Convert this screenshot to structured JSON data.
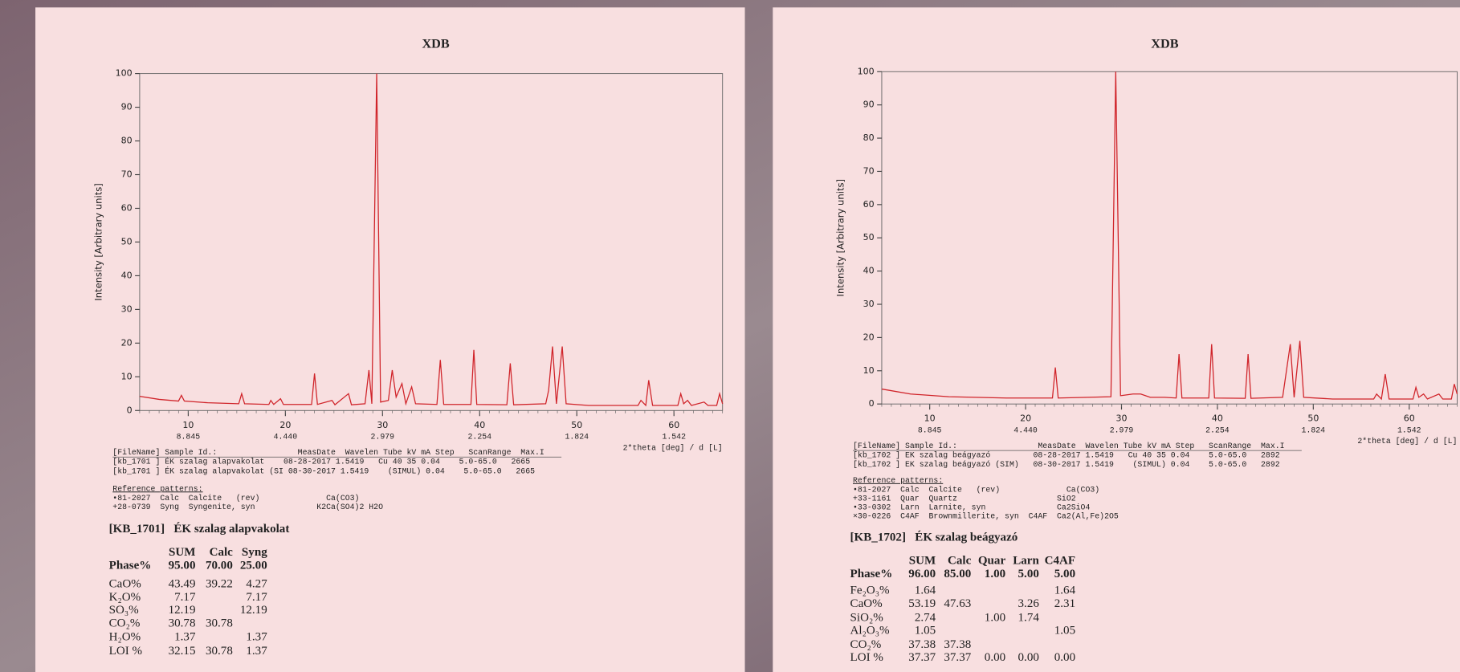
{
  "chart_data": [
    {
      "type": "line",
      "title": "XDB",
      "y_label": "Intensity  [Arbitrary units]",
      "x_label": "2*theta [deg] / d [L]",
      "xlim": [
        5,
        65
      ],
      "xticks": [
        10,
        20,
        30,
        40,
        50,
        60
      ],
      "x2ticks": [
        {
          "value": 10,
          "label": "8.845"
        },
        {
          "value": 20,
          "label": "4.440"
        },
        {
          "value": 30,
          "label": "2.979"
        },
        {
          "value": 40,
          "label": "2.254"
        },
        {
          "value": 50,
          "label": "1.824"
        },
        {
          "value": 60,
          "label": "1.542"
        }
      ],
      "ylim": [
        0,
        100
      ],
      "yticks": [
        0,
        10,
        20,
        30,
        40,
        50,
        60,
        70,
        80,
        90,
        100
      ],
      "x": [
        5,
        7,
        9.0,
        9.3,
        9.6,
        12,
        15.2,
        15.5,
        15.8,
        18.3,
        18.5,
        18.8,
        19.5,
        19.8,
        22.7,
        23.0,
        23.3,
        24.8,
        25.1,
        26.5,
        26.8,
        28.2,
        28.6,
        28.9,
        29.4,
        29.8,
        30.6,
        31.0,
        31.4,
        32.0,
        32.4,
        33.0,
        33.4,
        35.6,
        35.95,
        36.3,
        39.1,
        39.4,
        39.7,
        42.8,
        43.15,
        43.5,
        46.8,
        47.1,
        47.5,
        47.9,
        48.5,
        48.9,
        51.2,
        56.3,
        56.6,
        57.1,
        57.4,
        57.8,
        60.4,
        60.7,
        61.0,
        61.4,
        61.8,
        63.1,
        63.5,
        64.4,
        64.7,
        65
      ],
      "series": [
        {
          "color": "#d0242a",
          "values": [
            4.2,
            3.3,
            2.8,
            4.5,
            2.8,
            2.3,
            2,
            5,
            2,
            1.8,
            3,
            1.8,
            3.5,
            1.8,
            1.8,
            11,
            1.8,
            3,
            1.7,
            5,
            1.7,
            2,
            12,
            2,
            100,
            2.5,
            3,
            12,
            4,
            8,
            2,
            7,
            2,
            1.8,
            15,
            1.8,
            1.8,
            18,
            1.8,
            1.7,
            14,
            1.7,
            2,
            6,
            19,
            2,
            19,
            2,
            1.5,
            1.5,
            3,
            1.5,
            9,
            1.5,
            1.5,
            5,
            2,
            3,
            1.5,
            2.5,
            1.5,
            1.5,
            5,
            2
          ]
        }
      ],
      "file_header": "[FileName] Sample Id.:                 MeasDate  Wavelen Tube kV mA Step   ScanRange  Max.I",
      "files": [
        {
          "text": "[kb_1701 ] ÉK szalag alapvakolat    08-28-2017 1.5419   Cu 40 35 0.04    5.0-65.0   2665",
          "color": "#c0303a"
        },
        {
          "text": "[kb_1701 ] ÉK szalag alapvakolat (SI 08-30-2017 1.5419    (SIMUL) 0.04    5.0-65.0   2665",
          "color": "#4040a0"
        }
      ],
      "reference_title": "Reference patterns:",
      "references": [
        {
          "text": "•81-2027  Calc  Calcite   (rev)              Ca(CO3)",
          "color": "#8a3a8a"
        },
        {
          "text": "+28-0739  Syng  Syngenite, syn             K2Ca(SO4)2 H2O",
          "color": "#8a3a8a"
        }
      ],
      "sample_title": "[KB_1701]   ÉK szalag alapvakolat",
      "table": {
        "header": [
          "SUM",
          "Calc",
          "Syng"
        ],
        "rows": [
          {
            "label": "Phase%",
            "cells": [
              "95.00",
              "70.00",
              "25.00"
            ]
          },
          {
            "label": "CaO%",
            "cells": [
              "43.49",
              "39.22",
              "4.27"
            ]
          },
          {
            "label": "K₂O%",
            "cells": [
              "7.17",
              null,
              "7.17"
            ]
          },
          {
            "label": "SO₃%",
            "cells": [
              "12.19",
              null,
              "12.19"
            ]
          },
          {
            "label": "CO₂%",
            "cells": [
              "30.78",
              "30.78",
              null
            ]
          },
          {
            "label": "H₂O%",
            "cells": [
              "1.37",
              null,
              "1.37"
            ]
          },
          {
            "label": "LOI %",
            "cells": [
              "32.15",
              "30.78",
              "1.37"
            ]
          }
        ]
      }
    },
    {
      "type": "line",
      "title": "XDB",
      "y_label": "Intensity  [Arbitrary units]",
      "x_label": "2*theta [deg] / d [L]",
      "xlim": [
        5,
        65
      ],
      "xticks": [
        10,
        20,
        30,
        40,
        50,
        60
      ],
      "x2ticks": [
        {
          "value": 10,
          "label": "8.845"
        },
        {
          "value": 20,
          "label": "4.440"
        },
        {
          "value": 30,
          "label": "2.979"
        },
        {
          "value": 40,
          "label": "2.254"
        },
        {
          "value": 50,
          "label": "1.824"
        },
        {
          "value": 60,
          "label": "1.542"
        }
      ],
      "ylim": [
        0,
        100
      ],
      "yticks": [
        0,
        10,
        20,
        30,
        40,
        50,
        60,
        70,
        80,
        90,
        100
      ],
      "x": [
        5,
        8,
        12,
        18,
        22.8,
        23.1,
        23.4,
        26.5,
        28.9,
        29.4,
        29.9,
        31.2,
        32.0,
        33.0,
        34.5,
        35.7,
        36.0,
        36.3,
        39.1,
        39.4,
        39.7,
        42.9,
        43.2,
        43.5,
        46.8,
        47.1,
        47.6,
        48.0,
        48.6,
        49.0,
        52,
        56.3,
        56.6,
        57.1,
        57.5,
        57.9,
        60.4,
        60.7,
        61.0,
        61.5,
        61.9,
        63.1,
        63.5,
        64.4,
        64.7,
        65
      ],
      "series": [
        {
          "color": "#d0242a",
          "values": [
            4.5,
            3,
            2.2,
            1.8,
            1.8,
            11,
            1.8,
            2,
            2.2,
            100,
            2.5,
            3,
            3,
            2,
            2,
            1.8,
            15,
            1.8,
            1.8,
            18,
            1.8,
            1.7,
            15,
            1.7,
            2,
            8,
            18,
            2,
            19,
            2,
            1.5,
            1.5,
            3,
            1.5,
            9,
            1.5,
            1.5,
            5,
            2,
            3,
            1.5,
            3,
            1.5,
            1.5,
            6,
            3
          ]
        }
      ],
      "file_header": "[FileName] Sample Id.:                 MeasDate  Wavelen Tube kV mA Step   ScanRange  Max.I",
      "files": [
        {
          "text": "[kb_1702 ] EK szalag beágyazó         08-28-2017 1.5419   Cu 40 35 0.04    5.0-65.0   2892",
          "color": "#c0303a"
        },
        {
          "text": "[kb_1702 ] EK szalag beágyazó (SIM)   08-30-2017 1.5419    (SIMUL) 0.04    5.0-65.0   2892",
          "color": "#4040a0"
        }
      ],
      "reference_title": "Reference patterns:",
      "references": [
        {
          "text": "•81-2027  Calc  Calcite   (rev)              Ca(CO3)",
          "color": "#8a3a8a"
        },
        {
          "text": "+33-1161  Quar  Quartz                     SiO2",
          "color": "#8a3a8a"
        },
        {
          "text": "•33-0302  Larn  Larnite, syn               Ca2SiO4",
          "color": "#3a8a3a"
        },
        {
          "text": "×30-0226  C4AF  Brownmillerite, syn  C4AF  Ca2(Al,Fe)2O5",
          "color": "#8a3a8a"
        }
      ],
      "sample_title": "[KB_1702]   ÉK szalag beágyazó",
      "table": {
        "header": [
          "SUM",
          "Calc",
          "Quar",
          "Larn",
          "C4AF"
        ],
        "rows": [
          {
            "label": "Phase%",
            "cells": [
              "96.00",
              "85.00",
              "1.00",
              "5.00",
              "5.00"
            ]
          },
          {
            "label": "Fe₂O₃%",
            "cells": [
              "1.64",
              null,
              null,
              null,
              "1.64"
            ]
          },
          {
            "label": "CaO%",
            "cells": [
              "53.19",
              "47.63",
              null,
              "3.26",
              "2.31"
            ]
          },
          {
            "label": "SiO₂%",
            "cells": [
              "2.74",
              null,
              "1.00",
              "1.74",
              null
            ]
          },
          {
            "label": "Al₂O₃%",
            "cells": [
              "1.05",
              null,
              null,
              null,
              "1.05"
            ]
          },
          {
            "label": "CO₂%",
            "cells": [
              "37.38",
              "37.38",
              null,
              null,
              null
            ]
          },
          {
            "label": "LOI %",
            "cells": [
              "37.37",
              "37.37",
              "0.00",
              "0.00",
              "0.00"
            ]
          }
        ]
      }
    }
  ]
}
